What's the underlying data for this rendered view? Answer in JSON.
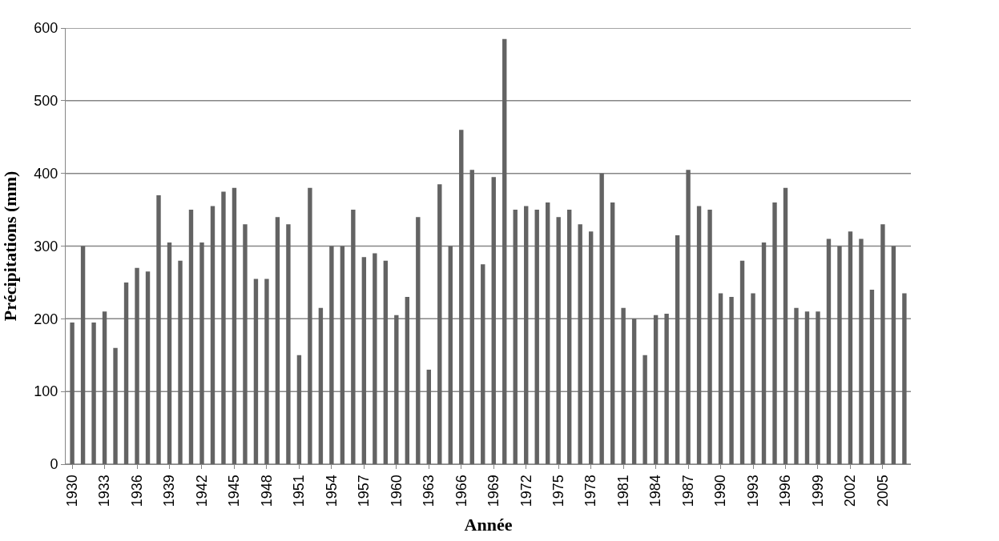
{
  "chart_data": {
    "type": "bar",
    "xlabel": "Année",
    "ylabel": "Précipitations (mm)",
    "categories": [
      "1930",
      null,
      null,
      "1933",
      null,
      null,
      "1936",
      null,
      null,
      "1939",
      null,
      null,
      "1942",
      null,
      null,
      "1945",
      null,
      null,
      "1948",
      null,
      null,
      "1951",
      null,
      null,
      "1954",
      null,
      null,
      "1957",
      null,
      null,
      "1960",
      null,
      null,
      "1963",
      null,
      null,
      "1966",
      null,
      null,
      "1969",
      null,
      null,
      "1972",
      null,
      null,
      "1975",
      null,
      null,
      "1978",
      null,
      null,
      "1981",
      null,
      null,
      "1984",
      null,
      null,
      "1987",
      null,
      null,
      "1990",
      null,
      null,
      "1993",
      null,
      null,
      "1996",
      null,
      null,
      "1999",
      null,
      null,
      "2002",
      null,
      null,
      "2005",
      null,
      null
    ],
    "values": [
      195,
      300,
      195,
      210,
      160,
      250,
      270,
      265,
      370,
      305,
      280,
      350,
      305,
      355,
      375,
      380,
      330,
      255,
      255,
      340,
      330,
      150,
      380,
      215,
      300,
      300,
      350,
      285,
      290,
      280,
      205,
      230,
      340,
      130,
      385,
      300,
      460,
      405,
      275,
      395,
      585,
      350,
      355,
      350,
      360,
      340,
      350,
      330,
      320,
      400,
      360,
      215,
      200,
      150,
      205,
      207,
      315,
      405,
      355,
      350,
      235,
      230,
      280,
      235,
      305,
      360,
      380,
      215,
      210,
      210,
      310,
      300,
      320,
      310,
      240,
      330,
      300,
      235
    ],
    "color": "#636363",
    "ylim": [
      0,
      600
    ],
    "yticks": [
      0,
      100,
      200,
      300,
      400,
      500,
      600
    ],
    "grid": "y"
  }
}
